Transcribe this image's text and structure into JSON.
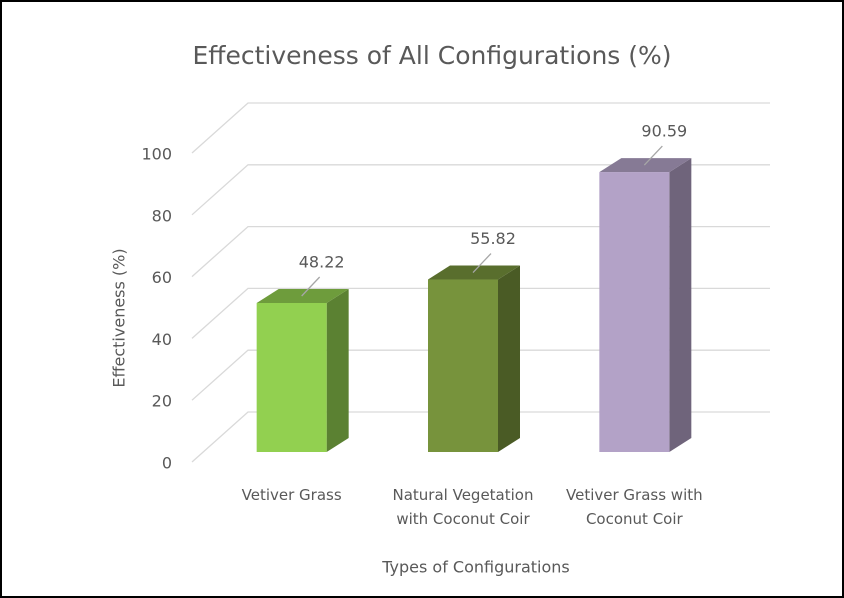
{
  "chart_data": {
    "type": "bar3d",
    "title": "Effectiveness of All Configurations (%)",
    "x_label": "Types of Configurations",
    "y_label": "Effectiveness  (%)",
    "categories": [
      "Vetiver Grass",
      "Natural Vegetation with Coconut Coir",
      "Vetiver Grass with Coconut Coir"
    ],
    "values": [
      48.22,
      55.82,
      90.59
    ],
    "colors": [
      "#92d050",
      "#77933c",
      "#b3a2c7"
    ],
    "ylim": [
      0,
      100
    ],
    "yticks": [
      0,
      20,
      40,
      60,
      80,
      100
    ],
    "grid": true
  }
}
